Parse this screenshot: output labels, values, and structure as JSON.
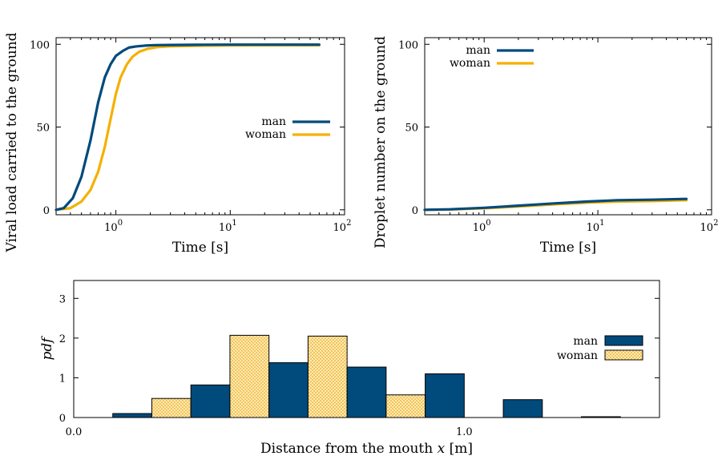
{
  "colors": {
    "man": "#004a7c",
    "woman": "#f5b000",
    "woman_hatch": "#f6d27a",
    "axes": "#000000"
  },
  "chart_data": [
    {
      "type": "line",
      "xscale": "log",
      "xlabel": "Time [s]",
      "ylabel": "Viral load carried to the ground",
      "xlim": [
        0.3,
        100
      ],
      "ylim": [
        -3,
        104
      ],
      "xticks": [
        1,
        10,
        100
      ],
      "xtick_labels": [
        {
          "base": "10",
          "exp": "0"
        },
        {
          "base": "10",
          "exp": "1"
        },
        {
          "base": "10",
          "exp": "2"
        }
      ],
      "yticks": [
        0,
        50,
        100
      ],
      "ytick_labels": [
        "0",
        "50",
        "100"
      ],
      "legend": "right",
      "series": [
        {
          "name": "man",
          "color": "#004a7c",
          "x": [
            0.3,
            0.35,
            0.42,
            0.5,
            0.6,
            0.7,
            0.8,
            0.9,
            1.0,
            1.15,
            1.3,
            1.5,
            1.8,
            2.2,
            3,
            5,
            10,
            30,
            60
          ],
          "y": [
            0,
            1,
            7,
            20,
            42,
            65,
            80,
            88,
            93,
            96,
            98,
            98.7,
            99.2,
            99.5,
            99.6,
            99.7,
            99.8,
            99.8,
            99.8
          ]
        },
        {
          "name": "woman",
          "color": "#f5b000",
          "x": [
            0.3,
            0.4,
            0.5,
            0.6,
            0.7,
            0.8,
            0.9,
            1.0,
            1.1,
            1.25,
            1.4,
            1.6,
            1.9,
            2.3,
            3,
            5,
            10,
            30,
            60
          ],
          "y": [
            0,
            1,
            5,
            12,
            23,
            38,
            55,
            70,
            80,
            88,
            92.5,
            95.5,
            97.3,
            98.3,
            98.8,
            99.1,
            99.3,
            99.4,
            99.4
          ]
        }
      ]
    },
    {
      "type": "line",
      "xscale": "log",
      "xlabel": "Time [s]",
      "ylabel": "Droplet number on the ground",
      "xlim": [
        0.3,
        100
      ],
      "ylim": [
        -3,
        104
      ],
      "xticks": [
        1,
        10,
        100
      ],
      "xtick_labels": [
        {
          "base": "10",
          "exp": "0"
        },
        {
          "base": "10",
          "exp": "1"
        },
        {
          "base": "10",
          "exp": "2"
        }
      ],
      "yticks": [
        0,
        50,
        100
      ],
      "ytick_labels": [
        "0",
        "50",
        "100"
      ],
      "legend": "top-left",
      "series": [
        {
          "name": "man",
          "color": "#004a7c",
          "x": [
            0.3,
            0.5,
            1,
            2,
            4,
            8,
            15,
            30,
            60
          ],
          "y": [
            0,
            0.3,
            1.2,
            2.5,
            3.8,
            5,
            5.8,
            6.1,
            6.6
          ]
        },
        {
          "name": "woman",
          "color": "#f5b000",
          "x": [
            0.3,
            0.5,
            1,
            2,
            4,
            8,
            15,
            30,
            60
          ],
          "y": [
            0,
            0.2,
            0.9,
            2,
            3.2,
            4.3,
            5,
            5.3,
            5.8
          ]
        }
      ]
    },
    {
      "type": "bar",
      "xlabel_text": "Distance from the mouth",
      "xlabel_var": "x",
      "xlabel_unit": "[m]",
      "ylabel": "pdf",
      "xlim": [
        0.0,
        1.5
      ],
      "ylim": [
        0,
        3.45
      ],
      "xticks": [
        0.0,
        1.0
      ],
      "xtick_labels": [
        "0.0",
        "1.0"
      ],
      "yticks": [
        0,
        1,
        2,
        3
      ],
      "ytick_labels": [
        "0",
        "1",
        "2",
        "3"
      ],
      "legend": "right",
      "bin_width": 0.2,
      "bin_edges": [
        0.1,
        0.3,
        0.5,
        0.7,
        0.9,
        1.1,
        1.3
      ],
      "series": [
        {
          "name": "man",
          "color": "#004a7c",
          "values": [
            0.1,
            0.82,
            1.38,
            1.27,
            1.1,
            0.45,
            0.02
          ]
        },
        {
          "name": "woman",
          "color": "#f5b000",
          "values": [
            0.48,
            2.07,
            2.05,
            0.57,
            0,
            0,
            0
          ]
        }
      ]
    }
  ]
}
